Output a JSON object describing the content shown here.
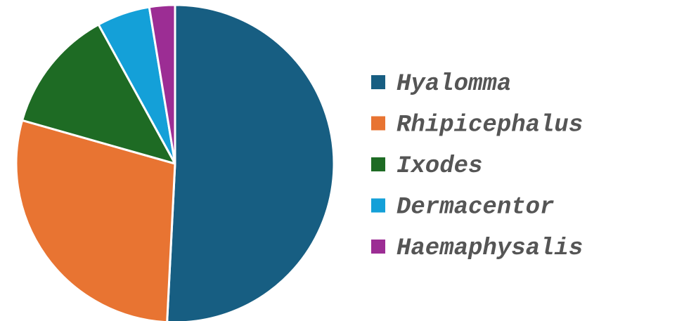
{
  "chart_data": {
    "type": "pie",
    "categories": [
      "Hyalomma",
      "Rhipicephalus",
      "Ixodes",
      "Dermacentor",
      "Haemaphysalis"
    ],
    "values": [
      50.8,
      28.6,
      12.6,
      5.4,
      2.6
    ],
    "colors": [
      "#175e82",
      "#e87432",
      "#1e6b24",
      "#14a0d8",
      "#9c2d94"
    ],
    "legend": "right"
  }
}
